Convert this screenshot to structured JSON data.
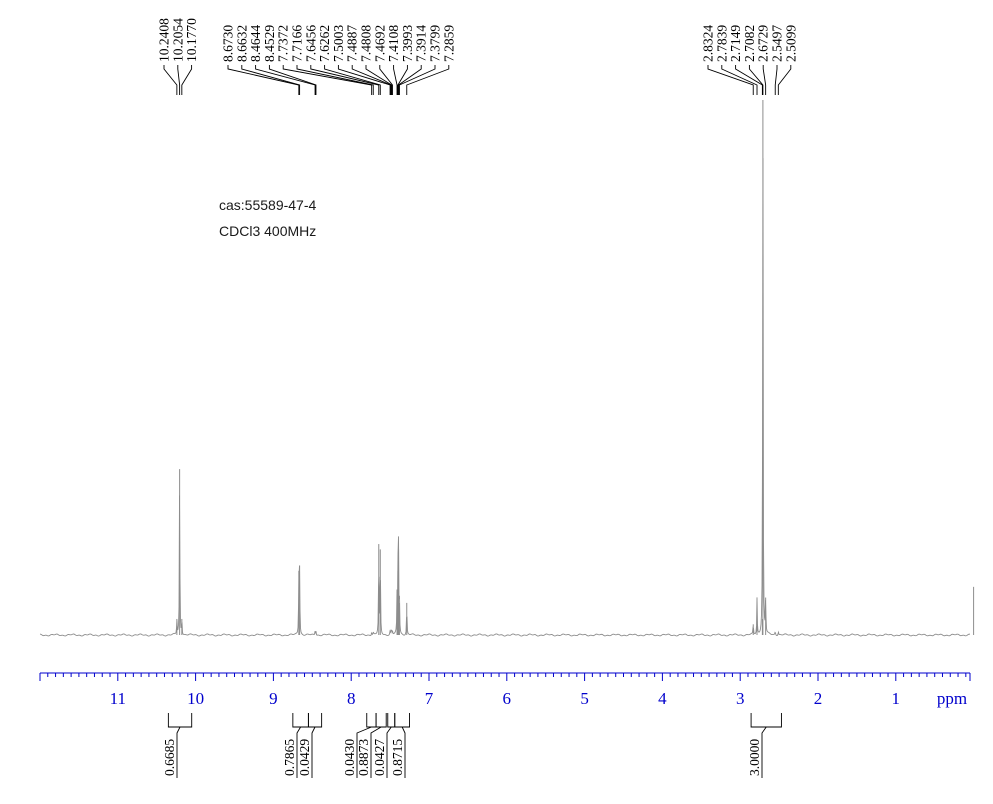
{
  "chart_data": {
    "type": "line",
    "sample": {
      "id": "cas:55589-47-4",
      "conditions": "CDCl3  400MHz"
    },
    "x_axis": {
      "unit": "ppm",
      "reversed": true,
      "range": [
        12.0,
        -0.05
      ],
      "ticks": [
        "11",
        "10",
        "9",
        "8",
        "7",
        "6",
        "5",
        "4",
        "3",
        "2",
        "1"
      ],
      "minor_step": 0.1,
      "color": "#0000cc"
    },
    "peak_labels": [
      {
        "group": 1,
        "values": [
          "10.2408",
          "10.2054",
          "10.1770"
        ]
      },
      {
        "group": 2,
        "values": [
          "8.6730",
          "8.6632",
          "8.4644",
          "8.4529",
          "7.7372",
          "7.7166",
          "7.6456",
          "7.6262",
          "7.5003",
          "7.4887",
          "7.4808",
          "7.4692",
          "7.4108",
          "7.3993",
          "7.3914",
          "7.3799",
          "7.2859"
        ]
      },
      {
        "group": 3,
        "values": [
          "2.8324",
          "2.7839",
          "2.7149",
          "2.7082",
          "2.6729",
          "2.5497",
          "2.5099"
        ]
      }
    ],
    "peaks": [
      {
        "ppm": 10.2408,
        "height": 0.03
      },
      {
        "ppm": 10.2054,
        "height": 0.31
      },
      {
        "ppm": 10.177,
        "height": 0.03
      },
      {
        "ppm": 8.673,
        "height": 0.12
      },
      {
        "ppm": 8.6632,
        "height": 0.13
      },
      {
        "ppm": 8.4644,
        "height": 0.008
      },
      {
        "ppm": 8.4529,
        "height": 0.008
      },
      {
        "ppm": 7.7372,
        "height": 0.006
      },
      {
        "ppm": 7.7166,
        "height": 0.006
      },
      {
        "ppm": 7.6456,
        "height": 0.17
      },
      {
        "ppm": 7.6262,
        "height": 0.16
      },
      {
        "ppm": 7.5003,
        "height": 0.006
      },
      {
        "ppm": 7.4887,
        "height": 0.006
      },
      {
        "ppm": 7.4808,
        "height": 0.006
      },
      {
        "ppm": 7.4692,
        "height": 0.006
      },
      {
        "ppm": 7.4108,
        "height": 0.07
      },
      {
        "ppm": 7.3993,
        "height": 0.12
      },
      {
        "ppm": 7.3914,
        "height": 0.16
      },
      {
        "ppm": 7.3799,
        "height": 0.06
      },
      {
        "ppm": 7.2859,
        "height": 0.06
      },
      {
        "ppm": 2.8324,
        "height": 0.02
      },
      {
        "ppm": 2.7839,
        "height": 0.068
      },
      {
        "ppm": 2.7149,
        "height": 0.03
      },
      {
        "ppm": 2.7082,
        "height": 1.0
      },
      {
        "ppm": 2.6729,
        "height": 0.07
      },
      {
        "ppm": 2.5497,
        "height": 0.008
      },
      {
        "ppm": 2.5099,
        "height": 0.008
      },
      {
        "ppm": 0.0,
        "height": 0.09
      }
    ],
    "integrals": [
      {
        "ppm_range": [
          10.35,
          10.05
        ],
        "value": "0.6685"
      },
      {
        "ppm_range": [
          8.75,
          8.55
        ],
        "value": "0.7865"
      },
      {
        "ppm_range": [
          8.55,
          8.38
        ],
        "value": "0.0429"
      },
      {
        "ppm_range": [
          7.8,
          7.68
        ],
        "value": "0.0430"
      },
      {
        "ppm_range": [
          7.68,
          7.55
        ],
        "value": "0.8873"
      },
      {
        "ppm_range": [
          7.53,
          7.44
        ],
        "value": "0.0427"
      },
      {
        "ppm_range": [
          7.44,
          7.25
        ],
        "value": "0.8715"
      },
      {
        "ppm_range": [
          2.86,
          2.47
        ],
        "value": "3.0000"
      }
    ],
    "colors": {
      "spectrum": "#8c8c8c",
      "labels": "#000000",
      "axis": "#0000cc"
    }
  }
}
